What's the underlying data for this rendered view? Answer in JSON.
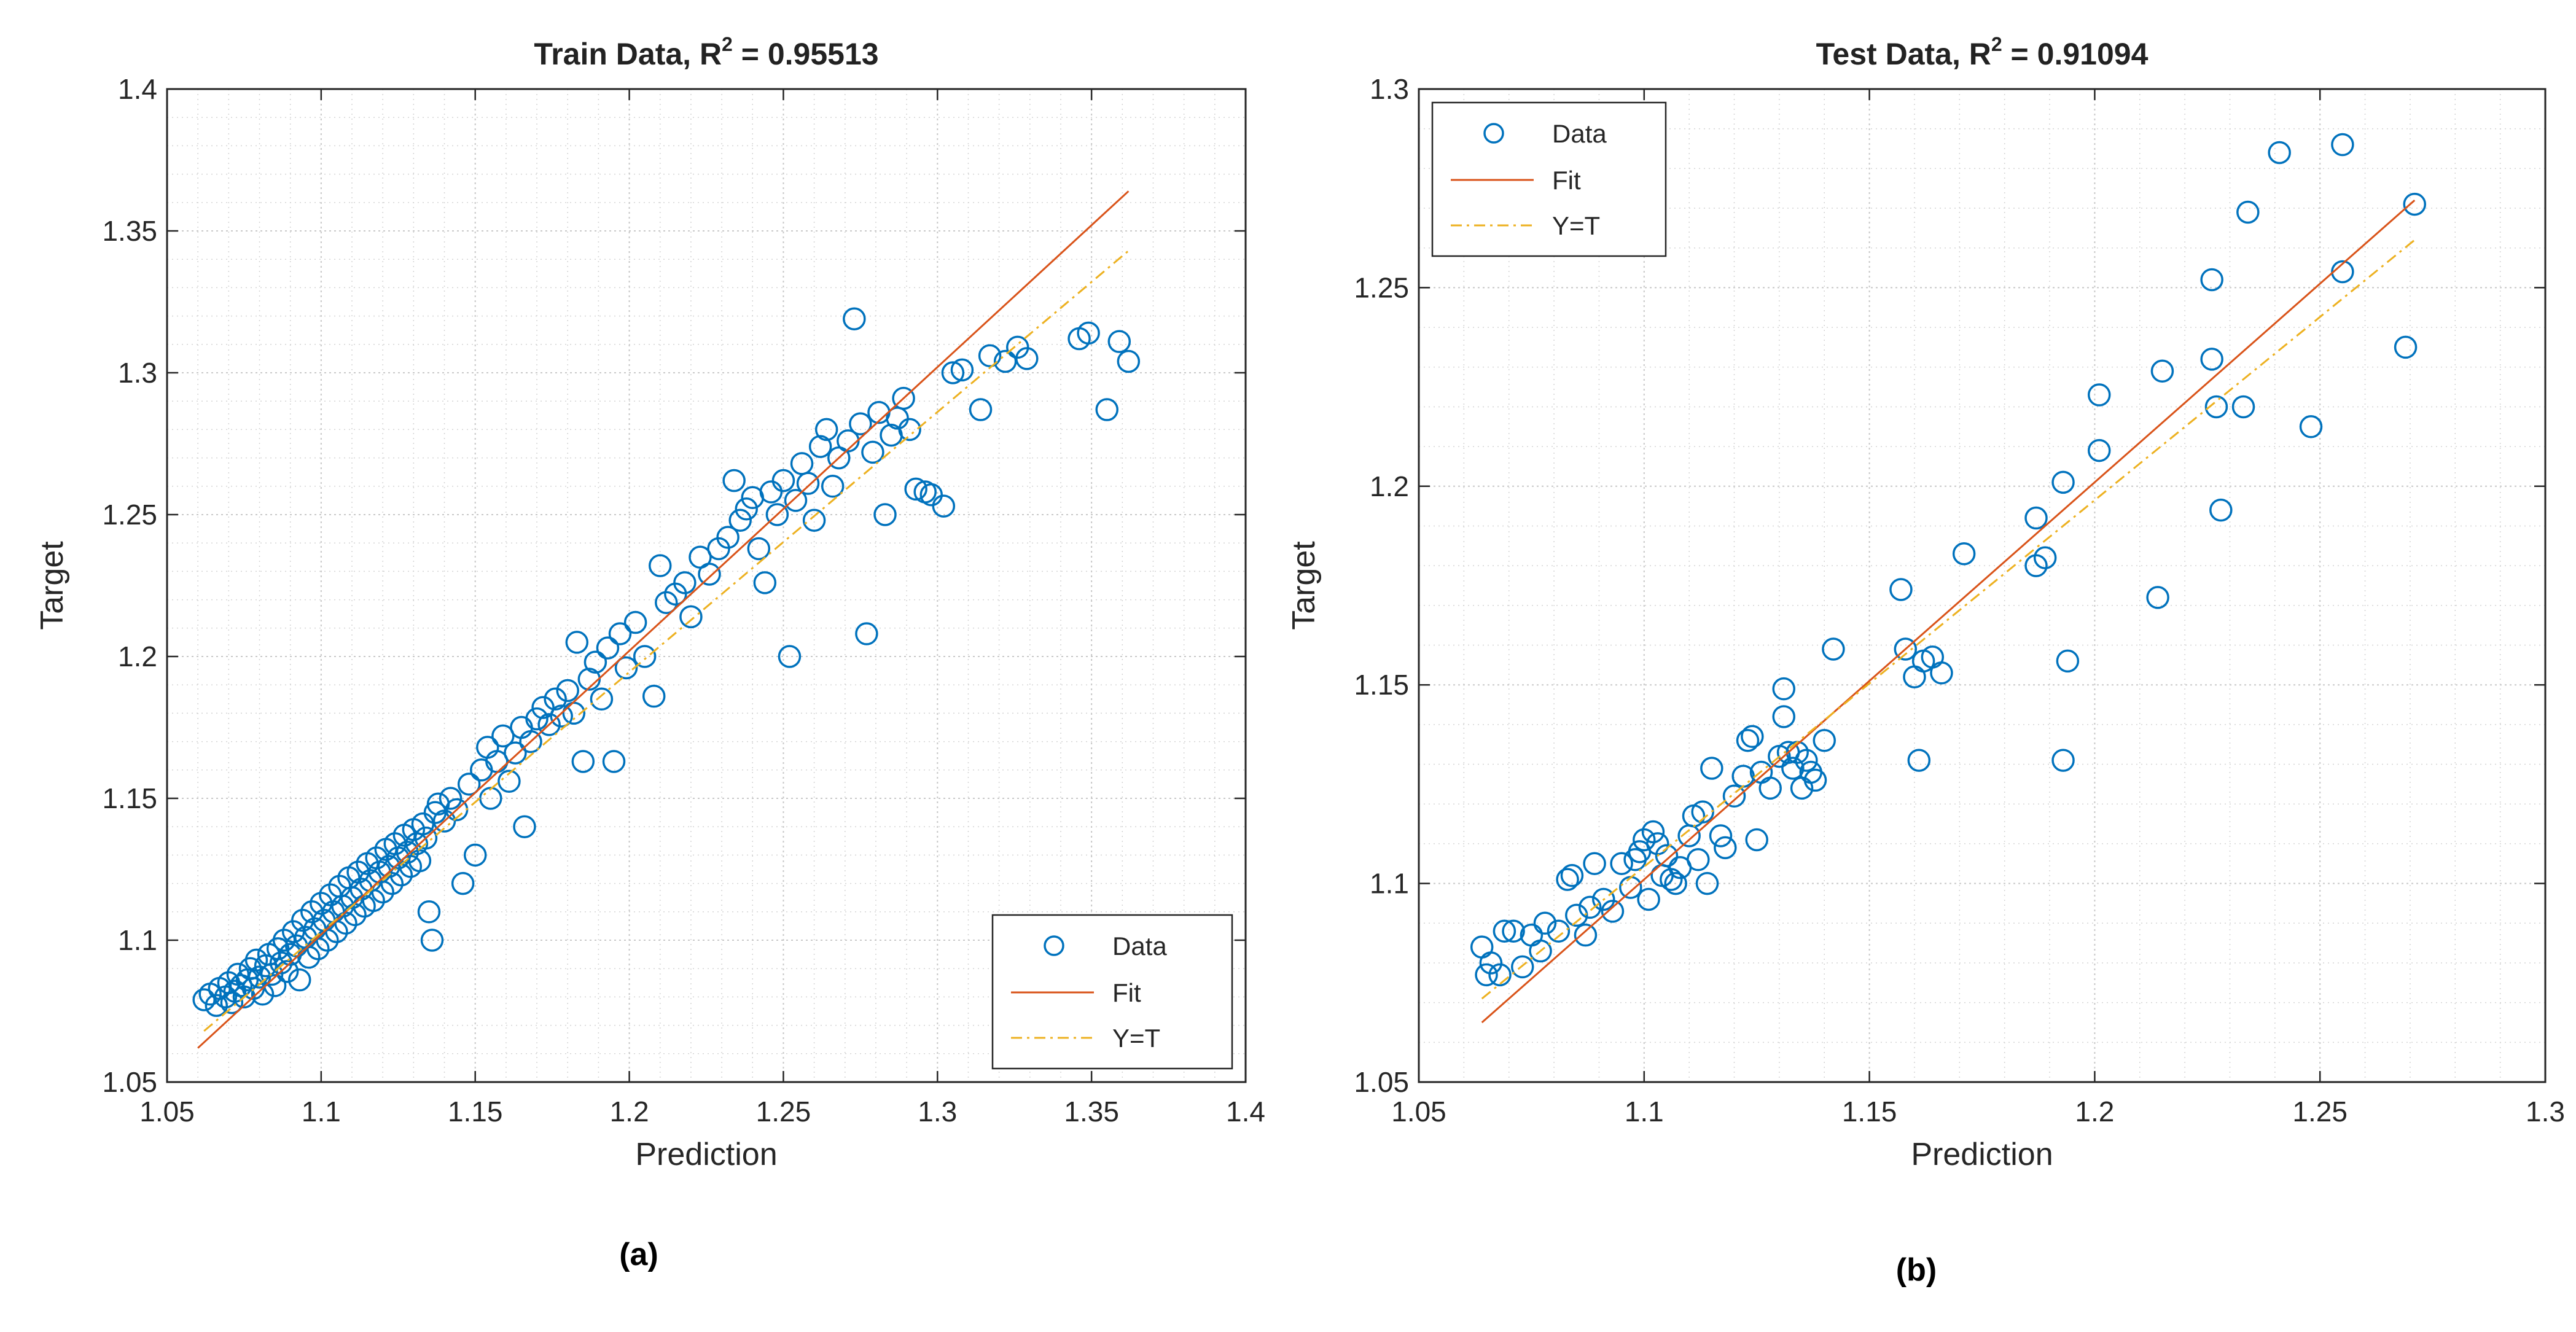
{
  "chart_data": [
    {
      "type": "scatter",
      "panel_label": "(a)",
      "title_prefix": "Train Data, R",
      "title_sup": "2",
      "title_suffix": " = 0.95513",
      "title": "Train Data, R^2 = 0.95513",
      "xlabel": "Prediction",
      "ylabel": "Target",
      "xlim": [
        1.05,
        1.4
      ],
      "ylim": [
        1.05,
        1.4
      ],
      "xticks": [
        "1.05",
        "1.1",
        "1.15",
        "1.2",
        "1.25",
        "1.3",
        "1.35",
        "1.4"
      ],
      "yticks": [
        "1.05",
        "1.1",
        "1.15",
        "1.2",
        "1.25",
        "1.3",
        "1.35",
        "1.4"
      ],
      "grid": true,
      "minor_grid": true,
      "legend_position": "bottom-right",
      "legend": [
        "Data",
        "Fit",
        "Y=T"
      ],
      "fit_line": {
        "x": [
          1.06,
          1.362
        ],
        "y": [
          1.062,
          1.364
        ]
      },
      "identity_line": {
        "x": [
          1.062,
          1.362
        ],
        "y": [
          1.068,
          1.343
        ]
      },
      "series": [
        {
          "name": "Data",
          "points": [
            [
              1.062,
              1.079
            ],
            [
              1.064,
              1.081
            ],
            [
              1.066,
              1.077
            ],
            [
              1.067,
              1.083
            ],
            [
              1.069,
              1.08
            ],
            [
              1.07,
              1.085
            ],
            [
              1.071,
              1.078
            ],
            [
              1.072,
              1.082
            ],
            [
              1.073,
              1.088
            ],
            [
              1.074,
              1.084
            ],
            [
              1.075,
              1.08
            ],
            [
              1.076,
              1.086
            ],
            [
              1.077,
              1.09
            ],
            [
              1.078,
              1.083
            ],
            [
              1.079,
              1.093
            ],
            [
              1.08,
              1.087
            ],
            [
              1.081,
              1.081
            ],
            [
              1.082,
              1.091
            ],
            [
              1.083,
              1.095
            ],
            [
              1.084,
              1.088
            ],
            [
              1.085,
              1.084
            ],
            [
              1.086,
              1.097
            ],
            [
              1.087,
              1.092
            ],
            [
              1.088,
              1.1
            ],
            [
              1.089,
              1.089
            ],
            [
              1.09,
              1.095
            ],
            [
              1.091,
              1.103
            ],
            [
              1.092,
              1.098
            ],
            [
              1.093,
              1.086
            ],
            [
              1.094,
              1.107
            ],
            [
              1.095,
              1.101
            ],
            [
              1.096,
              1.094
            ],
            [
              1.097,
              1.11
            ],
            [
              1.098,
              1.104
            ],
            [
              1.099,
              1.097
            ],
            [
              1.1,
              1.113
            ],
            [
              1.101,
              1.107
            ],
            [
              1.102,
              1.1
            ],
            [
              1.103,
              1.116
            ],
            [
              1.104,
              1.11
            ],
            [
              1.105,
              1.103
            ],
            [
              1.106,
              1.119
            ],
            [
              1.107,
              1.112
            ],
            [
              1.108,
              1.106
            ],
            [
              1.109,
              1.122
            ],
            [
              1.11,
              1.115
            ],
            [
              1.111,
              1.109
            ],
            [
              1.112,
              1.124
            ],
            [
              1.113,
              1.118
            ],
            [
              1.114,
              1.112
            ],
            [
              1.115,
              1.127
            ],
            [
              1.116,
              1.121
            ],
            [
              1.117,
              1.114
            ],
            [
              1.118,
              1.129
            ],
            [
              1.119,
              1.124
            ],
            [
              1.12,
              1.117
            ],
            [
              1.121,
              1.132
            ],
            [
              1.122,
              1.126
            ],
            [
              1.123,
              1.12
            ],
            [
              1.124,
              1.134
            ],
            [
              1.125,
              1.129
            ],
            [
              1.126,
              1.123
            ],
            [
              1.127,
              1.137
            ],
            [
              1.128,
              1.131
            ],
            [
              1.129,
              1.126
            ],
            [
              1.13,
              1.139
            ],
            [
              1.131,
              1.134
            ],
            [
              1.132,
              1.128
            ],
            [
              1.133,
              1.141
            ],
            [
              1.134,
              1.136
            ],
            [
              1.135,
              1.11
            ],
            [
              1.136,
              1.1
            ],
            [
              1.137,
              1.145
            ],
            [
              1.138,
              1.148
            ],
            [
              1.14,
              1.142
            ],
            [
              1.142,
              1.15
            ],
            [
              1.144,
              1.146
            ],
            [
              1.146,
              1.12
            ],
            [
              1.148,
              1.155
            ],
            [
              1.15,
              1.13
            ],
            [
              1.152,
              1.16
            ],
            [
              1.154,
              1.168
            ],
            [
              1.155,
              1.15
            ],
            [
              1.157,
              1.163
            ],
            [
              1.159,
              1.172
            ],
            [
              1.161,
              1.156
            ],
            [
              1.163,
              1.166
            ],
            [
              1.165,
              1.175
            ],
            [
              1.166,
              1.14
            ],
            [
              1.168,
              1.17
            ],
            [
              1.17,
              1.178
            ],
            [
              1.172,
              1.182
            ],
            [
              1.174,
              1.176
            ],
            [
              1.176,
              1.185
            ],
            [
              1.178,
              1.179
            ],
            [
              1.18,
              1.188
            ],
            [
              1.182,
              1.18
            ],
            [
              1.183,
              1.205
            ],
            [
              1.185,
              1.163
            ],
            [
              1.187,
              1.192
            ],
            [
              1.189,
              1.198
            ],
            [
              1.191,
              1.185
            ],
            [
              1.193,
              1.203
            ],
            [
              1.195,
              1.163
            ],
            [
              1.197,
              1.208
            ],
            [
              1.199,
              1.196
            ],
            [
              1.202,
              1.212
            ],
            [
              1.205,
              1.2
            ],
            [
              1.208,
              1.186
            ],
            [
              1.21,
              1.232
            ],
            [
              1.212,
              1.219
            ],
            [
              1.215,
              1.222
            ],
            [
              1.218,
              1.226
            ],
            [
              1.22,
              1.214
            ],
            [
              1.223,
              1.235
            ],
            [
              1.226,
              1.229
            ],
            [
              1.229,
              1.238
            ],
            [
              1.232,
              1.242
            ],
            [
              1.234,
              1.262
            ],
            [
              1.236,
              1.248
            ],
            [
              1.238,
              1.252
            ],
            [
              1.24,
              1.256
            ],
            [
              1.242,
              1.238
            ],
            [
              1.244,
              1.226
            ],
            [
              1.246,
              1.258
            ],
            [
              1.248,
              1.25
            ],
            [
              1.25,
              1.262
            ],
            [
              1.252,
              1.2
            ],
            [
              1.254,
              1.255
            ],
            [
              1.256,
              1.268
            ],
            [
              1.258,
              1.261
            ],
            [
              1.26,
              1.248
            ],
            [
              1.262,
              1.274
            ],
            [
              1.264,
              1.28
            ],
            [
              1.266,
              1.26
            ],
            [
              1.268,
              1.27
            ],
            [
              1.271,
              1.276
            ],
            [
              1.273,
              1.319
            ],
            [
              1.275,
              1.282
            ],
            [
              1.277,
              1.208
            ],
            [
              1.279,
              1.272
            ],
            [
              1.281,
              1.286
            ],
            [
              1.283,
              1.25
            ],
            [
              1.285,
              1.278
            ],
            [
              1.287,
              1.284
            ],
            [
              1.289,
              1.291
            ],
            [
              1.291,
              1.28
            ],
            [
              1.293,
              1.259
            ],
            [
              1.296,
              1.258
            ],
            [
              1.298,
              1.257
            ],
            [
              1.302,
              1.253
            ],
            [
              1.305,
              1.3
            ],
            [
              1.308,
              1.301
            ],
            [
              1.314,
              1.287
            ],
            [
              1.317,
              1.306
            ],
            [
              1.322,
              1.304
            ],
            [
              1.326,
              1.309
            ],
            [
              1.329,
              1.305
            ],
            [
              1.346,
              1.312
            ],
            [
              1.349,
              1.314
            ],
            [
              1.355,
              1.287
            ],
            [
              1.359,
              1.311
            ],
            [
              1.362,
              1.304
            ]
          ]
        }
      ]
    },
    {
      "type": "scatter",
      "panel_label": "(b)",
      "title_prefix": "Test Data, R",
      "title_sup": "2",
      "title_suffix": " = 0.91094",
      "title": "Test Data, R^2 = 0.91094",
      "xlabel": "Prediction",
      "ylabel": "Target",
      "xlim": [
        1.05,
        1.3
      ],
      "ylim": [
        1.05,
        1.3
      ],
      "xticks": [
        "1.05",
        "1.1",
        "1.15",
        "1.2",
        "1.25",
        "1.3"
      ],
      "yticks": [
        "1.05",
        "1.1",
        "1.15",
        "1.2",
        "1.25",
        "1.3"
      ],
      "grid": true,
      "minor_grid": true,
      "legend_position": "top-left",
      "legend": [
        "Data",
        "Fit",
        "Y=T"
      ],
      "fit_line": {
        "x": [
          1.064,
          1.271
        ],
        "y": [
          1.065,
          1.272
        ]
      },
      "identity_line": {
        "x": [
          1.064,
          1.271
        ],
        "y": [
          1.071,
          1.262
        ]
      },
      "series": [
        {
          "name": "Data",
          "points": [
            [
              1.064,
              1.084
            ],
            [
              1.065,
              1.077
            ],
            [
              1.066,
              1.08
            ],
            [
              1.068,
              1.077
            ],
            [
              1.069,
              1.088
            ],
            [
              1.071,
              1.088
            ],
            [
              1.073,
              1.079
            ],
            [
              1.075,
              1.087
            ],
            [
              1.077,
              1.083
            ],
            [
              1.078,
              1.09
            ],
            [
              1.081,
              1.088
            ],
            [
              1.083,
              1.101
            ],
            [
              1.084,
              1.102
            ],
            [
              1.085,
              1.092
            ],
            [
              1.087,
              1.087
            ],
            [
              1.088,
              1.094
            ],
            [
              1.089,
              1.105
            ],
            [
              1.091,
              1.096
            ],
            [
              1.093,
              1.093
            ],
            [
              1.095,
              1.105
            ],
            [
              1.097,
              1.099
            ],
            [
              1.098,
              1.106
            ],
            [
              1.099,
              1.108
            ],
            [
              1.1,
              1.111
            ],
            [
              1.101,
              1.096
            ],
            [
              1.102,
              1.113
            ],
            [
              1.103,
              1.11
            ],
            [
              1.104,
              1.102
            ],
            [
              1.105,
              1.107
            ],
            [
              1.106,
              1.101
            ],
            [
              1.107,
              1.1
            ],
            [
              1.108,
              1.104
            ],
            [
              1.11,
              1.112
            ],
            [
              1.111,
              1.117
            ],
            [
              1.112,
              1.106
            ],
            [
              1.113,
              1.118
            ],
            [
              1.114,
              1.1
            ],
            [
              1.115,
              1.129
            ],
            [
              1.117,
              1.112
            ],
            [
              1.118,
              1.109
            ],
            [
              1.12,
              1.122
            ],
            [
              1.122,
              1.127
            ],
            [
              1.123,
              1.136
            ],
            [
              1.124,
              1.137
            ],
            [
              1.125,
              1.111
            ],
            [
              1.126,
              1.128
            ],
            [
              1.128,
              1.124
            ],
            [
              1.13,
              1.132
            ],
            [
              1.131,
              1.142
            ],
            [
              1.131,
              1.149
            ],
            [
              1.132,
              1.133
            ],
            [
              1.133,
              1.129
            ],
            [
              1.134,
              1.133
            ],
            [
              1.135,
              1.124
            ],
            [
              1.136,
              1.131
            ],
            [
              1.137,
              1.128
            ],
            [
              1.138,
              1.126
            ],
            [
              1.14,
              1.136
            ],
            [
              1.142,
              1.159
            ],
            [
              1.157,
              1.174
            ],
            [
              1.158,
              1.159
            ],
            [
              1.16,
              1.152
            ],
            [
              1.161,
              1.131
            ],
            [
              1.162,
              1.156
            ],
            [
              1.164,
              1.157
            ],
            [
              1.166,
              1.153
            ],
            [
              1.171,
              1.183
            ],
            [
              1.187,
              1.18
            ],
            [
              1.187,
              1.192
            ],
            [
              1.189,
              1.182
            ],
            [
              1.193,
              1.131
            ],
            [
              1.193,
              1.201
            ],
            [
              1.194,
              1.156
            ],
            [
              1.201,
              1.209
            ],
            [
              1.201,
              1.223
            ],
            [
              1.214,
              1.172
            ],
            [
              1.215,
              1.229
            ],
            [
              1.226,
              1.252
            ],
            [
              1.226,
              1.232
            ],
            [
              1.227,
              1.22
            ],
            [
              1.228,
              1.194
            ],
            [
              1.233,
              1.22
            ],
            [
              1.234,
              1.269
            ],
            [
              1.241,
              1.284
            ],
            [
              1.248,
              1.215
            ],
            [
              1.255,
              1.254
            ],
            [
              1.255,
              1.286
            ],
            [
              1.269,
              1.235
            ],
            [
              1.271,
              1.271
            ]
          ]
        }
      ]
    }
  ]
}
